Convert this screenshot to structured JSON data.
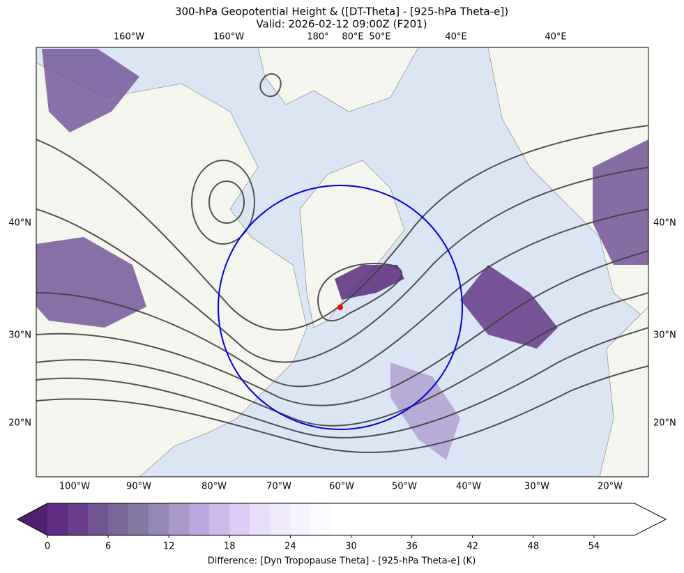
{
  "header": {
    "title": "300-hPa Geopotential Height & ([DT-Theta] - [925-hPa Theta-e])",
    "subtitle": "Valid: 2026-02-12 09:00Z (F201)"
  },
  "map": {
    "top_labels": [
      "160°W",
      "160°W",
      "180°",
      "80°E",
      "50°E",
      "40°E",
      "40°E"
    ],
    "bottom_labels": [
      "100°W",
      "90°W",
      "80°W",
      "70°W",
      "60°W",
      "50°W",
      "40°W",
      "30°W",
      "20°W"
    ],
    "left_labels": [
      "40°N",
      "30°N",
      "20°N"
    ],
    "right_labels": [
      "40°N",
      "30°N",
      "20°N"
    ]
  },
  "colorbar": {
    "range": [
      0,
      58
    ],
    "step": 2,
    "ticks": [
      0,
      6,
      12,
      18,
      24,
      30,
      36,
      42,
      48,
      54
    ],
    "colors": [
      "#5e2c82",
      "#693f8b",
      "#735592",
      "#7b6699",
      "#8478a2",
      "#9487b8",
      "#a998ca",
      "#bba8dc",
      "#cdbaeb",
      "#ddccf7",
      "#e9defb",
      "#f1eafd",
      "#f7f3fe",
      "#fbfaff"
    ],
    "label": "Difference: [Dyn Tropopause Theta] - [925-hPa Theta-e] (K)"
  }
}
